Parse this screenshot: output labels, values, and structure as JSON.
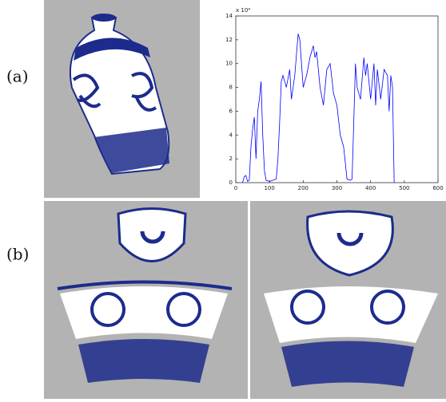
{
  "panels": [
    "(a)",
    "(b)"
  ],
  "chart_data": {
    "type": "line",
    "exponent_label": "x 10⁴",
    "x": [
      20,
      25,
      30,
      35,
      40,
      45,
      50,
      55,
      60,
      65,
      70,
      75,
      80,
      85,
      90,
      100,
      110,
      120,
      125,
      130,
      135,
      140,
      150,
      160,
      165,
      175,
      185,
      190,
      195,
      200,
      210,
      220,
      230,
      235,
      240,
      250,
      260,
      270,
      280,
      290,
      300,
      310,
      320,
      330,
      340,
      345,
      350,
      355,
      360,
      370,
      380,
      385,
      390,
      400,
      410,
      415,
      420,
      430,
      440,
      450,
      455,
      460,
      465,
      470
    ],
    "series": [
      {
        "color": "#0000ff",
        "values": [
          0,
          0.5,
          0.6,
          0.1,
          0.2,
          3,
          4.5,
          5.5,
          2,
          6,
          7,
          8.5,
          4,
          1,
          0.2,
          0.1,
          0.2,
          0.3,
          2,
          5,
          8.5,
          9,
          8,
          9.5,
          7,
          9,
          12.5,
          12,
          10,
          8,
          9,
          10.5,
          11.5,
          10.5,
          11,
          8,
          6.5,
          9.5,
          10,
          7.5,
          6.5,
          4,
          3,
          0.3,
          0.2,
          0.3,
          5,
          10,
          8,
          7,
          10.5,
          9,
          10,
          7,
          10,
          6.5,
          9.5,
          7,
          9.5,
          9,
          6,
          9,
          8,
          0
        ]
      }
    ],
    "xlim": [
      0,
      600
    ],
    "ylim": [
      0,
      14
    ],
    "xticks": [
      0,
      100,
      200,
      300,
      400,
      500,
      600
    ],
    "yticks": [
      0,
      2,
      4,
      6,
      8,
      10,
      12,
      14
    ]
  }
}
